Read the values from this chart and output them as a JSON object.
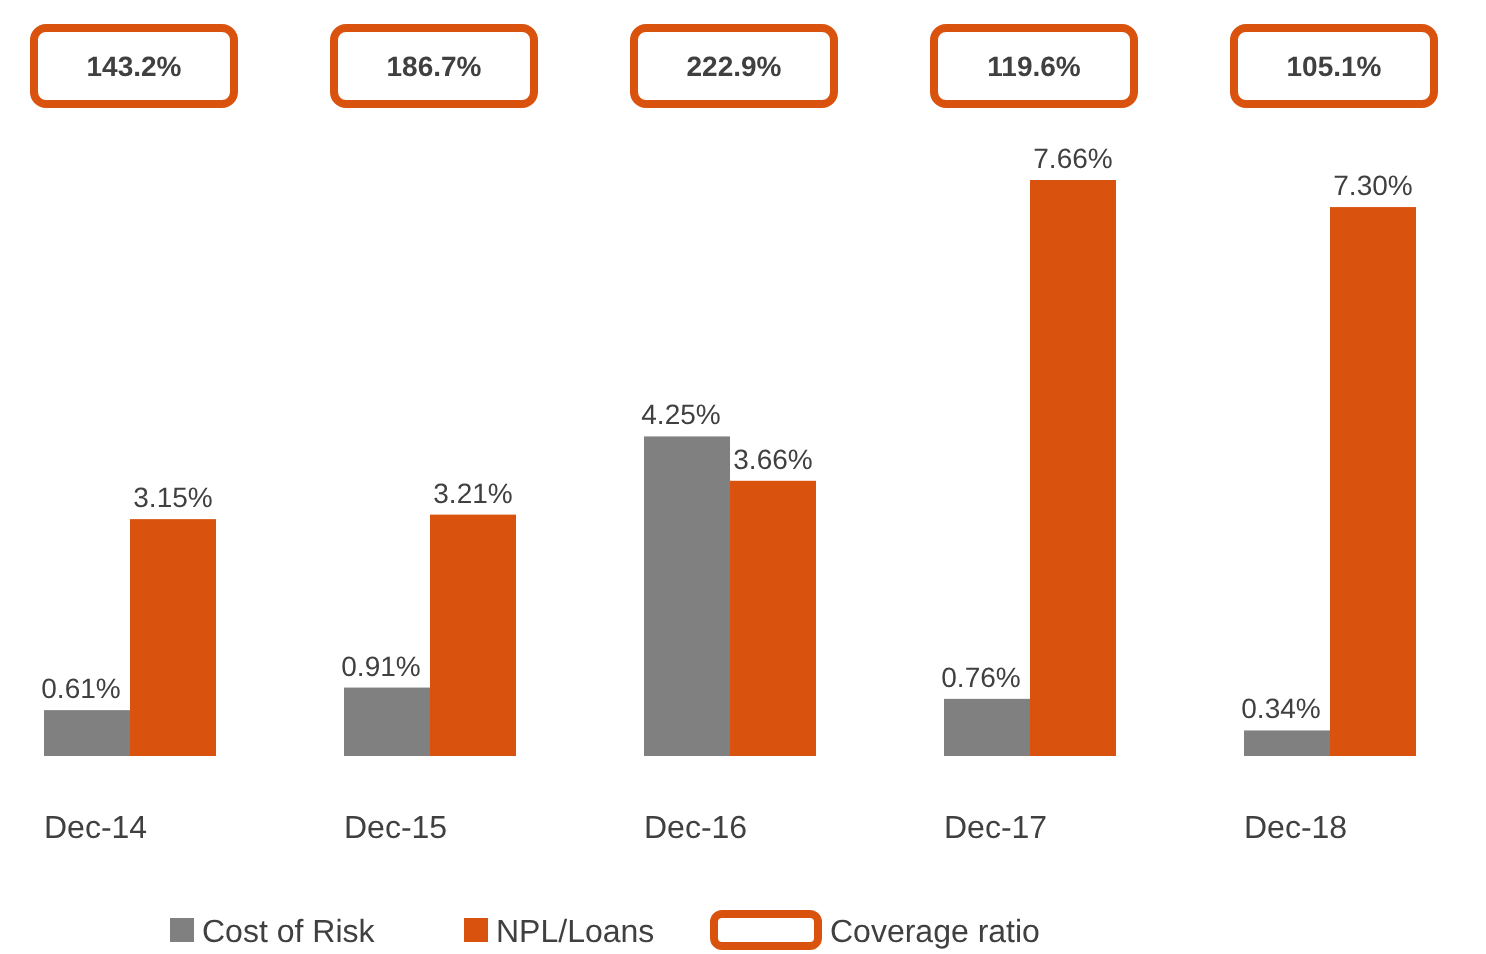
{
  "chart_data": {
    "type": "bar",
    "categories": [
      "Dec-14",
      "Dec-15",
      "Dec-16",
      "Dec-17",
      "Dec-18"
    ],
    "series": [
      {
        "name": "Cost of Risk",
        "color": "#808080",
        "values": [
          0.61,
          0.91,
          4.25,
          0.76,
          0.34
        ],
        "value_labels": [
          "0.61%",
          "0.91%",
          "4.25%",
          "0.76%",
          "0.34%"
        ]
      },
      {
        "name": "NPL/Loans",
        "color": "#d9530e",
        "values": [
          3.15,
          3.21,
          3.66,
          7.66,
          7.3
        ],
        "value_labels": [
          "3.15%",
          "3.21%",
          "3.66%",
          "7.66%",
          "7.30%"
        ]
      }
    ],
    "annotations": [
      "143.2%",
      "186.7%",
      "222.9%",
      "119.6%",
      "105.1%",
      "Coverage ratio"
    ],
    "legend": "bottom"
  }
}
